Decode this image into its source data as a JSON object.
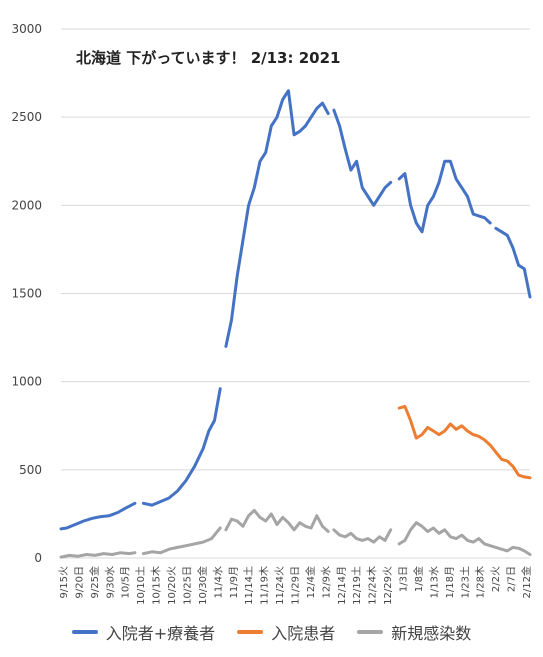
{
  "chart_data": {
    "type": "line",
    "title": "北海道 下がっています！ 2/13: 2021",
    "xlabel": "",
    "ylabel": "",
    "ylim": [
      0,
      3000
    ],
    "yticks": [
      0,
      500,
      1000,
      1500,
      2000,
      2500,
      3000
    ],
    "grid": true,
    "legend_position": "bottom",
    "x_start": "9/15",
    "x_end": "2/12",
    "xtick_labels": [
      "9/15火",
      "9/20日",
      "9/25金",
      "9/30水",
      "10/5月",
      "10/10土",
      "10/15木",
      "10/20火",
      "10/25日",
      "10/30金",
      "11/4水",
      "11/9月",
      "11/14土",
      "11/19木",
      "11/24火",
      "11/29日",
      "12/4金",
      "12/9水",
      "12/14月",
      "12/19土",
      "12/24木",
      "12/29火",
      "1/3日",
      "1/8金",
      "1/13水",
      "1/18月",
      "1/23土",
      "1/28木",
      "2/2火",
      "2/7日",
      "2/12金"
    ],
    "series": [
      {
        "name": "入院者+療養者",
        "color": "#4472C4",
        "segments": [
          [
            [
              "9/15",
              165
            ],
            [
              "9/17",
              170
            ],
            [
              "9/20",
              190
            ],
            [
              "9/23",
              210
            ],
            [
              "9/26",
              225
            ],
            [
              "9/29",
              235
            ],
            [
              "10/2",
              240
            ],
            [
              "10/5",
              258
            ],
            [
              "10/8",
              285
            ],
            [
              "10/11",
              310
            ]
          ],
          [
            [
              "10/14",
              310
            ],
            [
              "10/17",
              300
            ],
            [
              "10/20",
              320
            ],
            [
              "10/23",
              340
            ],
            [
              "10/26",
              380
            ],
            [
              "10/29",
              440
            ],
            [
              "11/1",
              520
            ],
            [
              "11/4",
              620
            ],
            [
              "11/6",
              720
            ],
            [
              "11/8",
              780
            ],
            [
              "11/10",
              960
            ]
          ],
          [
            [
              "11/12",
              1200
            ],
            [
              "11/14",
              1350
            ],
            [
              "11/16",
              1600
            ],
            [
              "11/18",
              1800
            ],
            [
              "11/20",
              2000
            ],
            [
              "11/22",
              2100
            ],
            [
              "11/24",
              2250
            ],
            [
              "11/26",
              2300
            ],
            [
              "11/28",
              2450
            ],
            [
              "11/30",
              2500
            ],
            [
              "12/2",
              2600
            ],
            [
              "12/4",
              2650
            ],
            [
              "12/6",
              2400
            ],
            [
              "12/8",
              2420
            ],
            [
              "12/10",
              2450
            ],
            [
              "12/12",
              2500
            ],
            [
              "12/14",
              2550
            ],
            [
              "12/16",
              2580
            ],
            [
              "12/18",
              2520
            ]
          ],
          [
            [
              "12/20",
              2540
            ],
            [
              "12/22",
              2450
            ],
            [
              "12/24",
              2320
            ],
            [
              "12/26",
              2200
            ],
            [
              "12/28",
              2250
            ],
            [
              "12/30",
              2100
            ],
            [
              "1/1",
              2050
            ],
            [
              "1/3",
              2000
            ],
            [
              "1/5",
              2050
            ],
            [
              "1/7",
              2100
            ],
            [
              "1/9",
              2130
            ]
          ],
          [
            [
              "1/12",
              2150
            ],
            [
              "1/14",
              2180
            ],
            [
              "1/16",
              2000
            ],
            [
              "1/18",
              1900
            ],
            [
              "1/20",
              1850
            ],
            [
              "1/22",
              2000
            ],
            [
              "1/24",
              2050
            ],
            [
              "1/26",
              2130
            ],
            [
              "1/28",
              2250
            ],
            [
              "1/30",
              2250
            ],
            [
              "2/1",
              2150
            ],
            [
              "2/3",
              2100
            ],
            [
              "2/5",
              2050
            ],
            [
              "2/7",
              1950
            ],
            [
              "2/9",
              1940
            ],
            [
              "2/11",
              1930
            ],
            [
              "2/13",
              1900
            ]
          ],
          [
            [
              "2/15",
              1870
            ],
            [
              "2/17",
              1850
            ],
            [
              "2/19",
              1830
            ],
            [
              "2/21",
              1760
            ],
            [
              "2/23",
              1660
            ],
            [
              "2/25",
              1640
            ],
            [
              "2/27",
              1480
            ]
          ]
        ]
      },
      {
        "name": "入院患者",
        "color": "#ED7D31",
        "segments": [
          [
            [
              "1/12",
              850
            ],
            [
              "1/14",
              860
            ],
            [
              "1/16",
              780
            ],
            [
              "1/18",
              680
            ],
            [
              "1/20",
              700
            ],
            [
              "1/22",
              740
            ],
            [
              "1/24",
              720
            ],
            [
              "1/26",
              700
            ],
            [
              "1/28",
              720
            ],
            [
              "1/30",
              760
            ],
            [
              "2/1",
              730
            ],
            [
              "2/3",
              750
            ],
            [
              "2/5",
              720
            ],
            [
              "2/7",
              700
            ],
            [
              "2/9",
              690
            ],
            [
              "2/11",
              670
            ],
            [
              "2/13",
              640
            ],
            [
              "2/15",
              600
            ],
            [
              "2/17",
              560
            ],
            [
              "2/19",
              550
            ],
            [
              "2/21",
              520
            ],
            [
              "2/23",
              470
            ],
            [
              "2/25",
              460
            ],
            [
              "2/27",
              455
            ]
          ]
        ]
      },
      {
        "name": "新規感染数",
        "color": "#A5A5A5",
        "segments": [
          [
            [
              "9/15",
              5
            ],
            [
              "9/18",
              15
            ],
            [
              "9/21",
              10
            ],
            [
              "9/24",
              20
            ],
            [
              "9/27",
              15
            ],
            [
              "9/30",
              25
            ],
            [
              "10/3",
              20
            ],
            [
              "10/6",
              30
            ],
            [
              "10/9",
              25
            ],
            [
              "10/11",
              30
            ]
          ],
          [
            [
              "10/14",
              25
            ],
            [
              "10/17",
              35
            ],
            [
              "10/20",
              30
            ],
            [
              "10/23",
              50
            ],
            [
              "10/26",
              60
            ],
            [
              "10/29",
              70
            ],
            [
              "11/1",
              80
            ],
            [
              "11/4",
              90
            ],
            [
              "11/7",
              110
            ],
            [
              "11/10",
              170
            ]
          ],
          [
            [
              "11/12",
              160
            ],
            [
              "11/14",
              220
            ],
            [
              "11/16",
              210
            ],
            [
              "11/18",
              180
            ],
            [
              "11/20",
              240
            ],
            [
              "11/22",
              270
            ],
            [
              "11/24",
              230
            ],
            [
              "11/26",
              210
            ],
            [
              "11/28",
              250
            ],
            [
              "11/30",
              190
            ],
            [
              "12/2",
              230
            ],
            [
              "12/4",
              200
            ],
            [
              "12/6",
              160
            ],
            [
              "12/8",
              200
            ],
            [
              "12/10",
              180
            ],
            [
              "12/12",
              170
            ],
            [
              "12/14",
              240
            ],
            [
              "12/16",
              180
            ],
            [
              "12/18",
              150
            ]
          ],
          [
            [
              "12/20",
              160
            ],
            [
              "12/22",
              130
            ],
            [
              "12/24",
              120
            ],
            [
              "12/26",
              140
            ],
            [
              "12/28",
              110
            ],
            [
              "12/30",
              100
            ],
            [
              "1/1",
              110
            ],
            [
              "1/3",
              90
            ],
            [
              "1/5",
              120
            ],
            [
              "1/7",
              100
            ],
            [
              "1/9",
              160
            ]
          ],
          [
            [
              "1/12",
              80
            ],
            [
              "1/14",
              100
            ],
            [
              "1/16",
              160
            ],
            [
              "1/18",
              200
            ],
            [
              "1/20",
              180
            ],
            [
              "1/22",
              150
            ],
            [
              "1/24",
              170
            ],
            [
              "1/26",
              140
            ],
            [
              "1/28",
              160
            ],
            [
              "1/30",
              120
            ],
            [
              "2/1",
              110
            ],
            [
              "2/3",
              130
            ],
            [
              "2/5",
              100
            ],
            [
              "2/7",
              90
            ],
            [
              "2/9",
              110
            ],
            [
              "2/11",
              80
            ],
            [
              "2/13",
              70
            ],
            [
              "2/15",
              60
            ],
            [
              "2/17",
              50
            ],
            [
              "2/19",
              40
            ],
            [
              "2/21",
              60
            ],
            [
              "2/23",
              55
            ],
            [
              "2/25",
              40
            ],
            [
              "2/27",
              20
            ]
          ]
        ]
      }
    ]
  }
}
